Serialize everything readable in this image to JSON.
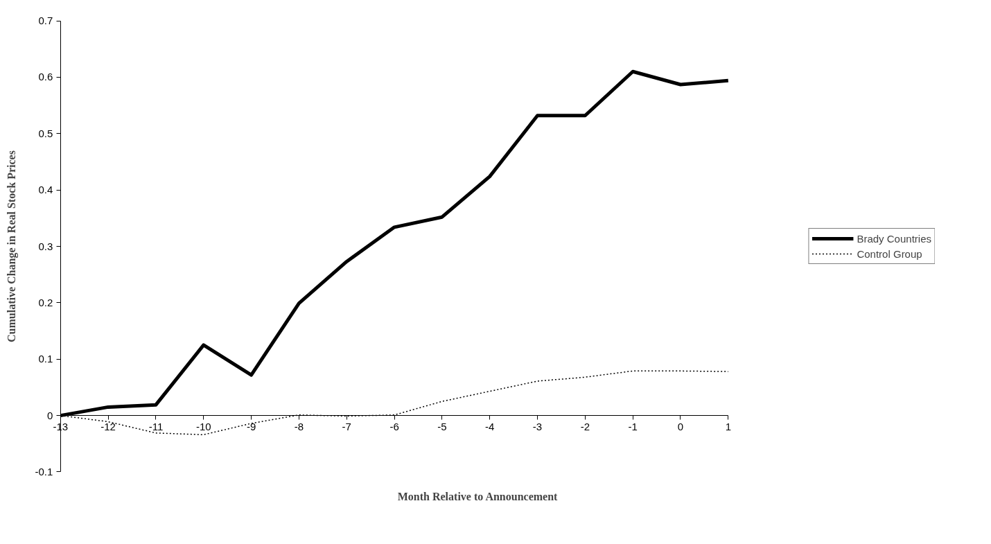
{
  "chart_data": {
    "type": "line",
    "xlabel": "Month Relative to Announcement",
    "ylabel": "Cumulative Change in Real Stock Prices",
    "x": [
      -13,
      -12,
      -11,
      -10,
      -9,
      -8,
      -7,
      -6,
      -5,
      -4,
      -3,
      -2,
      -1,
      0,
      1
    ],
    "series": [
      {
        "name": "Brady Countries",
        "color": "#000000",
        "line_style": "solid",
        "values": [
          0,
          0.015,
          0.019,
          0.125,
          0.072,
          0.199,
          0.273,
          0.334,
          0.352,
          0.424,
          0.532,
          0.532,
          0.61,
          0.587,
          0.594
        ]
      },
      {
        "name": "Control Group",
        "color": "#000000",
        "line_style": "dotted",
        "values": [
          0,
          -0.011,
          -0.031,
          -0.034,
          -0.014,
          0.001,
          -0.001,
          0.001,
          0.025,
          0.043,
          0.061,
          0.068,
          0.079,
          0.079,
          0.078
        ]
      }
    ],
    "xlim": [
      -13,
      1
    ],
    "xticks": [
      -13,
      -12,
      -11,
      -10,
      -9,
      -8,
      -7,
      -6,
      -5,
      -4,
      -3,
      -2,
      -1,
      0,
      1
    ],
    "ylim": [
      -0.1,
      0.7
    ],
    "yticks": [
      -0.1,
      0,
      0.1,
      0.2,
      0.3,
      0.4,
      0.5,
      0.6,
      0.7
    ],
    "grid": false,
    "legend": "right",
    "marker": "none"
  }
}
